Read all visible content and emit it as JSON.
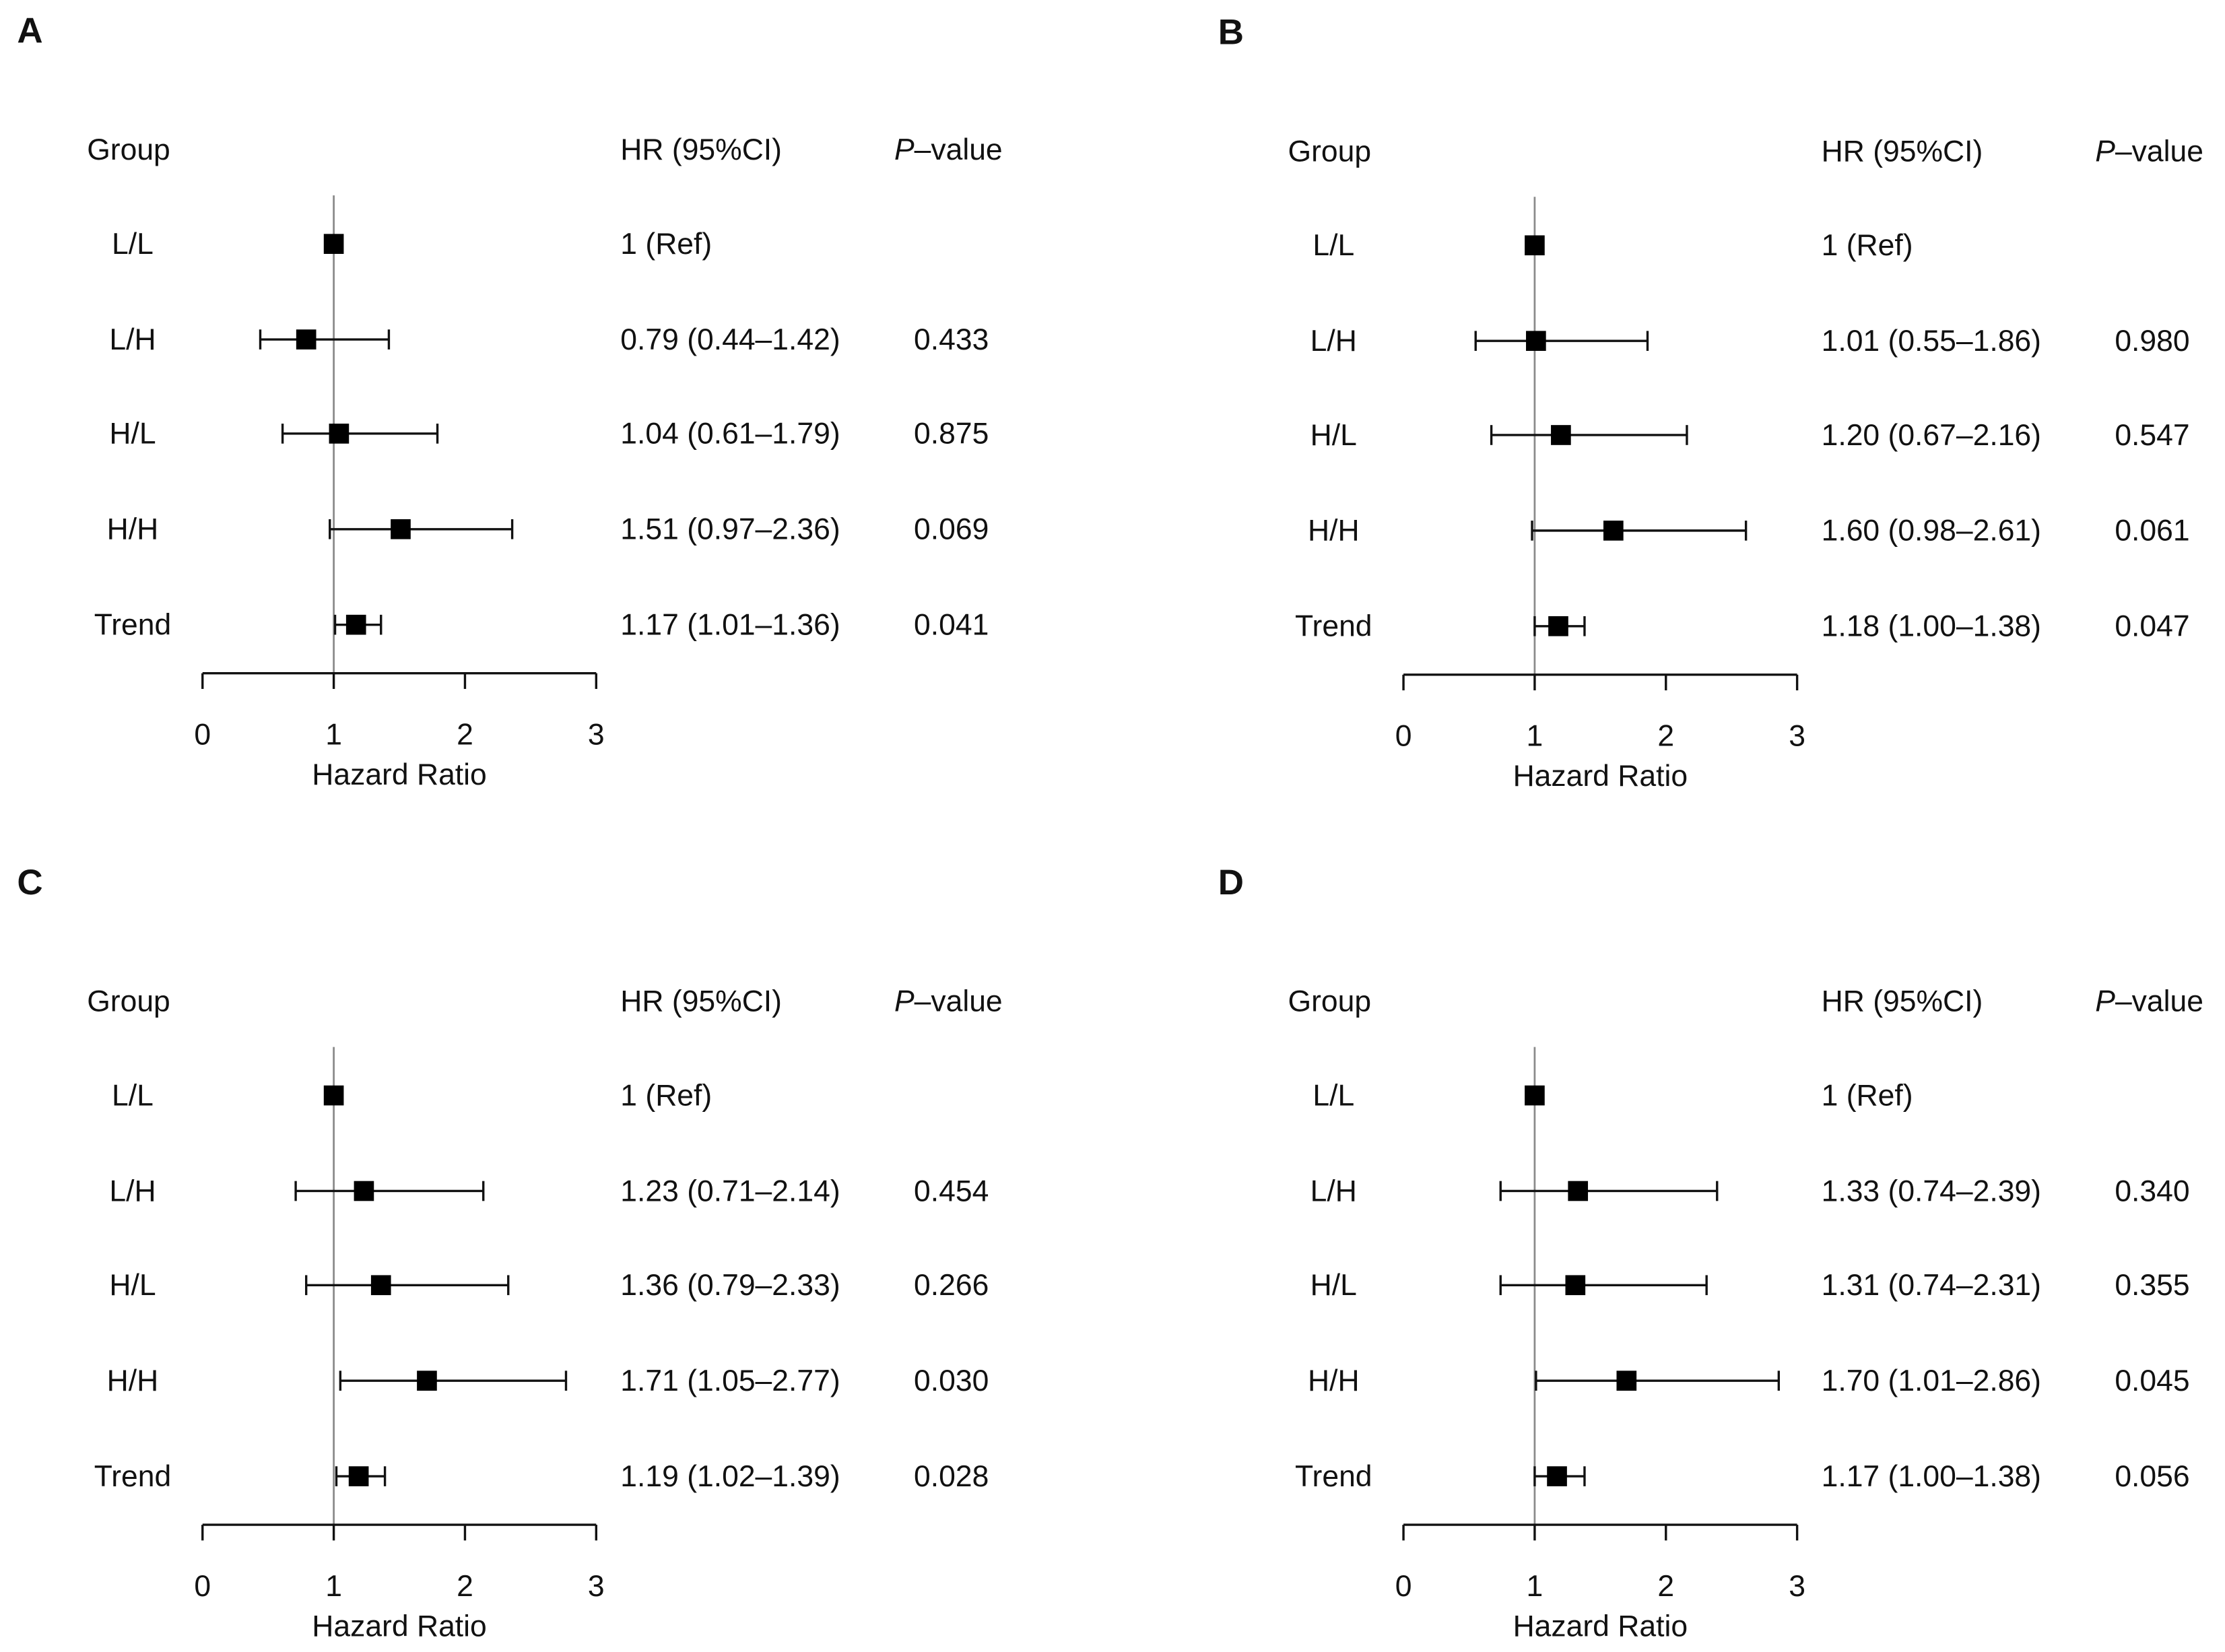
{
  "chart_data": [
    {
      "panel": "A",
      "type": "forest",
      "header": {
        "group": "Group",
        "hr": "HR (95%CI)",
        "p_italic": "P",
        "p_rest": "–value"
      },
      "xlabel": "Hazard Ratio",
      "xlim": [
        0,
        3
      ],
      "xticks": [
        "0",
        "1",
        "2",
        "3"
      ],
      "reference_line": 1,
      "rows": [
        {
          "group": "L/L",
          "hr": 1.0,
          "lo": null,
          "hi": null,
          "hr_text": "1 (Ref)",
          "p": ""
        },
        {
          "group": "L/H",
          "hr": 0.79,
          "lo": 0.44,
          "hi": 1.42,
          "hr_text": "0.79 (0.44–1.42)",
          "p": "0.433"
        },
        {
          "group": "H/L",
          "hr": 1.04,
          "lo": 0.61,
          "hi": 1.79,
          "hr_text": "1.04 (0.61–1.79)",
          "p": "0.875"
        },
        {
          "group": "H/H",
          "hr": 1.51,
          "lo": 0.97,
          "hi": 2.36,
          "hr_text": "1.51 (0.97–2.36)",
          "p": "0.069"
        },
        {
          "group": "Trend",
          "hr": 1.17,
          "lo": 1.01,
          "hi": 1.36,
          "hr_text": "1.17 (1.01–1.36)",
          "p": "0.041"
        }
      ]
    },
    {
      "panel": "B",
      "type": "forest",
      "header": {
        "group": "Group",
        "hr": "HR (95%CI)",
        "p_italic": "P",
        "p_rest": "–value"
      },
      "xlabel": "Hazard Ratio",
      "xlim": [
        0,
        3
      ],
      "xticks": [
        "0",
        "1",
        "2",
        "3"
      ],
      "reference_line": 1,
      "rows": [
        {
          "group": "L/L",
          "hr": 1.0,
          "lo": null,
          "hi": null,
          "hr_text": "1 (Ref)",
          "p": ""
        },
        {
          "group": "L/H",
          "hr": 1.01,
          "lo": 0.55,
          "hi": 1.86,
          "hr_text": "1.01 (0.55–1.86)",
          "p": "0.980"
        },
        {
          "group": "H/L",
          "hr": 1.2,
          "lo": 0.67,
          "hi": 2.16,
          "hr_text": "1.20 (0.67–2.16)",
          "p": "0.547"
        },
        {
          "group": "H/H",
          "hr": 1.6,
          "lo": 0.98,
          "hi": 2.61,
          "hr_text": "1.60 (0.98–2.61)",
          "p": "0.061"
        },
        {
          "group": "Trend",
          "hr": 1.18,
          "lo": 1.0,
          "hi": 1.38,
          "hr_text": "1.18 (1.00–1.38)",
          "p": "0.047"
        }
      ]
    },
    {
      "panel": "C",
      "type": "forest",
      "header": {
        "group": "Group",
        "hr": "HR (95%CI)",
        "p_italic": "P",
        "p_rest": "–value"
      },
      "xlabel": "Hazard Ratio",
      "xlim": [
        0,
        3
      ],
      "xticks": [
        "0",
        "1",
        "2",
        "3"
      ],
      "reference_line": 1,
      "rows": [
        {
          "group": "L/L",
          "hr": 1.0,
          "lo": null,
          "hi": null,
          "hr_text": "1 (Ref)",
          "p": ""
        },
        {
          "group": "L/H",
          "hr": 1.23,
          "lo": 0.71,
          "hi": 2.14,
          "hr_text": "1.23 (0.71–2.14)",
          "p": "0.454"
        },
        {
          "group": "H/L",
          "hr": 1.36,
          "lo": 0.79,
          "hi": 2.33,
          "hr_text": "1.36 (0.79–2.33)",
          "p": "0.266"
        },
        {
          "group": "H/H",
          "hr": 1.71,
          "lo": 1.05,
          "hi": 2.77,
          "hr_text": "1.71 (1.05–2.77)",
          "p": "0.030"
        },
        {
          "group": "Trend",
          "hr": 1.19,
          "lo": 1.02,
          "hi": 1.39,
          "hr_text": "1.19 (1.02–1.39)",
          "p": "0.028"
        }
      ]
    },
    {
      "panel": "D",
      "type": "forest",
      "header": {
        "group": "Group",
        "hr": "HR (95%CI)",
        "p_italic": "P",
        "p_rest": "–value"
      },
      "xlabel": "Hazard Ratio",
      "xlim": [
        0,
        3
      ],
      "xticks": [
        "0",
        "1",
        "2",
        "3"
      ],
      "reference_line": 1,
      "rows": [
        {
          "group": "L/L",
          "hr": 1.0,
          "lo": null,
          "hi": null,
          "hr_text": "1 (Ref)",
          "p": ""
        },
        {
          "group": "L/H",
          "hr": 1.33,
          "lo": 0.74,
          "hi": 2.39,
          "hr_text": "1.33 (0.74–2.39)",
          "p": "0.340"
        },
        {
          "group": "H/L",
          "hr": 1.31,
          "lo": 0.74,
          "hi": 2.31,
          "hr_text": "1.31 (0.74–2.31)",
          "p": "0.355"
        },
        {
          "group": "H/H",
          "hr": 1.7,
          "lo": 1.01,
          "hi": 2.86,
          "hr_text": "1.70 (1.01–2.86)",
          "p": "0.045"
        },
        {
          "group": "Trend",
          "hr": 1.17,
          "lo": 1.0,
          "hi": 1.38,
          "hr_text": "1.17 (1.00–1.38)",
          "p": "0.056"
        }
      ]
    }
  ]
}
